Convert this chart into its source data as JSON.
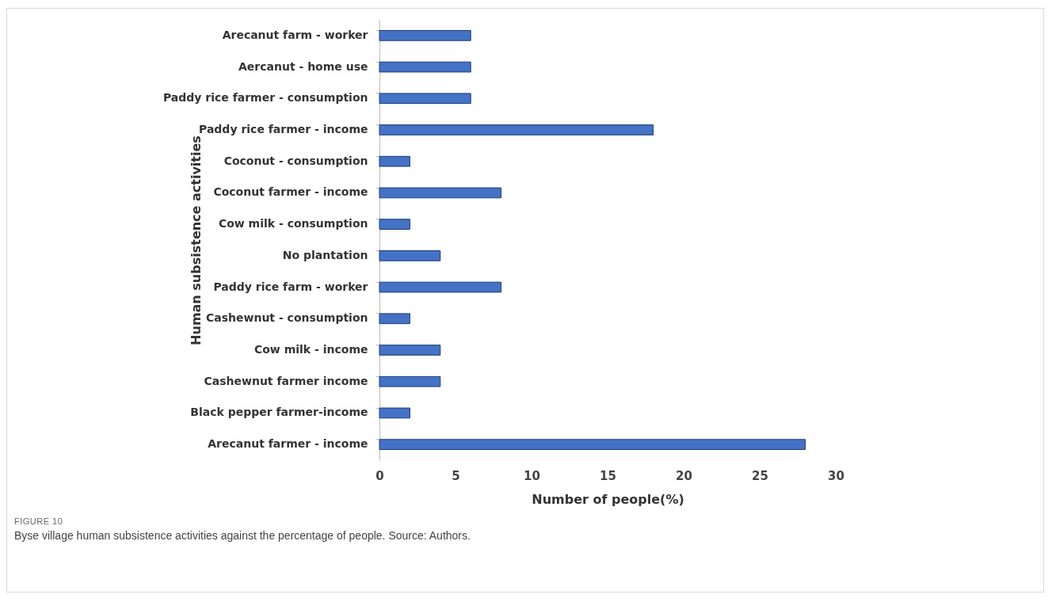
{
  "chart_data": {
    "type": "bar",
    "orientation": "horizontal",
    "categories": [
      "Arecanut farm - worker",
      "Aercanut - home use",
      "Paddy rice farmer - consumption",
      "Paddy rice farmer - income",
      "Coconut - consumption",
      "Coconut farmer - income",
      "Cow milk - consumption",
      "No plantation",
      "Paddy rice farm - worker",
      "Cashewnut - consumption",
      "Cow milk - income",
      "Cashewnut farmer income",
      "Black pepper farmer-income",
      "Arecanut farmer - income"
    ],
    "values": [
      6,
      6,
      6,
      18,
      2,
      8,
      2,
      4,
      8,
      2,
      4,
      4,
      2,
      28
    ],
    "color": "#4472c4",
    "xlim": [
      0,
      30
    ],
    "xticks": [
      0,
      5,
      10,
      15,
      20,
      25,
      30
    ],
    "xlabel": "Number of people(%)",
    "ylabel": "Human subsistence activities",
    "grid": false,
    "annotations": [
      "FIGURE 10",
      "Byse village human subsistence activities against the percentage of people. Source: Authors."
    ]
  }
}
